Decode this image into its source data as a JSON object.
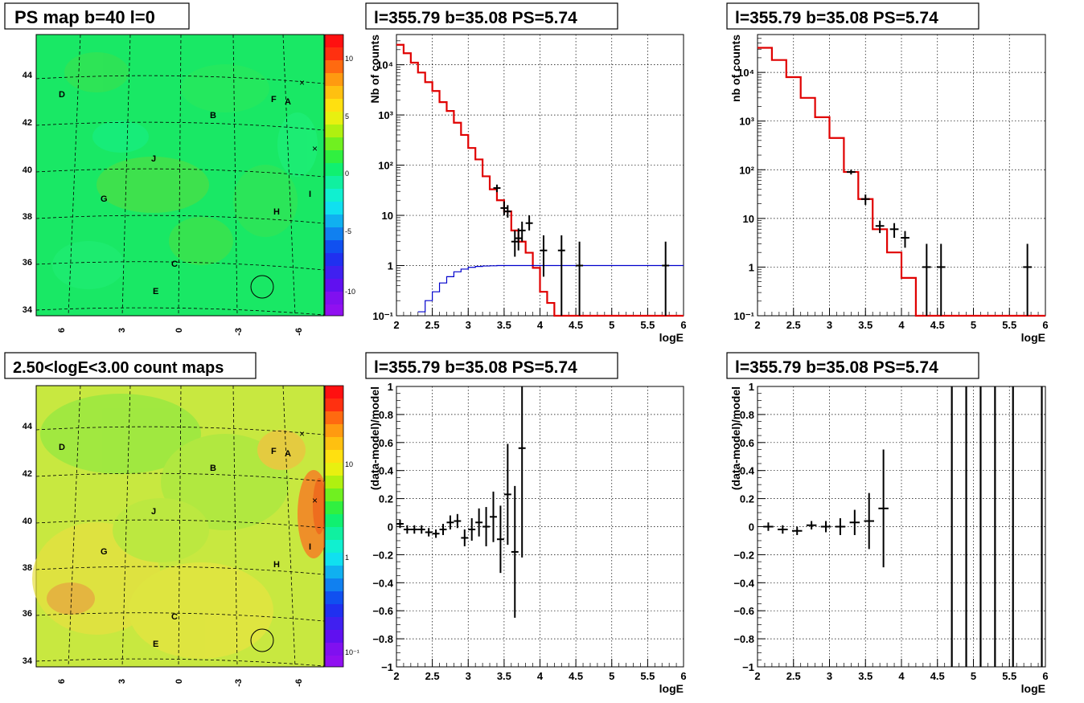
{
  "panels": {
    "map_top": {
      "title": "PS map b=40 l=0",
      "colorbar_ticks": [
        "10",
        "5",
        "0",
        "-5",
        "-10"
      ],
      "y_ticks": [
        "44",
        "42",
        "40",
        "38",
        "36",
        "34"
      ],
      "x_ticks": [
        "6",
        "3",
        "0",
        "-3",
        "-6"
      ],
      "labels": [
        "D",
        "F",
        "A",
        "B",
        "J",
        "G",
        "H",
        "I",
        "C",
        "E"
      ]
    },
    "map_bottom": {
      "title": "2.50<logE<3.00 count maps",
      "colorbar_ticks": [
        "10",
        "1",
        "10⁻¹"
      ],
      "y_ticks": [
        "44",
        "42",
        "40",
        "38",
        "36",
        "34"
      ],
      "x_ticks": [
        "6",
        "3",
        "0",
        "-3",
        "-6"
      ],
      "labels": [
        "D",
        "F",
        "A",
        "B",
        "J",
        "G",
        "H",
        "I",
        "C",
        "E"
      ]
    }
  },
  "chart_data": [
    {
      "type": "line",
      "panel": "spectrum-left",
      "title": "l=355.79 b=35.08 PS=5.74",
      "xlabel": "logE",
      "ylabel": "Nb of counts",
      "xlim": [
        2,
        6
      ],
      "ylim": [
        0.1,
        40000
      ],
      "yscale": "log",
      "x_ticks": [
        "2",
        "2.5",
        "3",
        "3.5",
        "4",
        "4.5",
        "5",
        "5.5",
        "6"
      ],
      "y_ticks": [
        "10⁻¹",
        "1",
        "10",
        "10²",
        "10³",
        "10⁴"
      ],
      "grid": true,
      "series": [
        {
          "style": "step",
          "color": "#e00000",
          "x": [
            2.0,
            2.1,
            2.2,
            2.3,
            2.4,
            2.5,
            2.6,
            2.7,
            2.8,
            2.9,
            3.0,
            3.1,
            3.2,
            3.3,
            3.4,
            3.5,
            3.6,
            3.7,
            3.8,
            3.9,
            4.0,
            4.1,
            4.2,
            6.0
          ],
          "values": [
            25000,
            17000,
            11000,
            7000,
            4500,
            3000,
            1800,
            1200,
            700,
            400,
            220,
            130,
            60,
            33,
            20,
            12,
            5,
            3,
            1.8,
            0.9,
            0.3,
            0.18,
            0.1,
            0.1
          ]
        },
        {
          "style": "step",
          "color": "#0000cc",
          "x": [
            2.3,
            2.4,
            2.5,
            2.6,
            2.7,
            2.8,
            2.9,
            3.0,
            3.1,
            3.2,
            3.3,
            3.4,
            6.0
          ],
          "values": [
            0.12,
            0.2,
            0.3,
            0.45,
            0.6,
            0.75,
            0.85,
            0.92,
            0.96,
            0.98,
            0.99,
            1.0,
            1.0
          ]
        },
        {
          "style": "errorbars",
          "color": "#000000",
          "x": [
            3.4,
            3.5,
            3.55,
            3.65,
            3.7,
            3.75,
            3.85,
            4.05,
            4.3,
            4.55,
            5.75
          ],
          "values": [
            35,
            14,
            12,
            3,
            3.5,
            5,
            7,
            2,
            2,
            1,
            1
          ],
          "xerr": [
            0.05,
            0.05,
            0.05,
            0.05,
            0.05,
            0.05,
            0.05,
            0.05,
            0.05,
            0.05,
            0.05
          ],
          "y_low": [
            29,
            10,
            9,
            1.5,
            2,
            3,
            5,
            0.6,
            0.1,
            0.1,
            0.1
          ],
          "y_high": [
            41,
            19,
            16,
            5,
            5.5,
            7.5,
            10,
            4,
            4,
            3,
            3
          ]
        }
      ]
    },
    {
      "type": "line",
      "panel": "spectrum-right",
      "title": "l=355.79 b=35.08 PS=5.74",
      "xlabel": "logE",
      "ylabel": "nb of counts",
      "xlim": [
        2,
        6
      ],
      "ylim": [
        0.1,
        60000
      ],
      "yscale": "log",
      "x_ticks": [
        "2",
        "2.5",
        "3",
        "3.5",
        "4",
        "4.5",
        "5",
        "5.5",
        "6"
      ],
      "y_ticks": [
        "10⁻¹",
        "1",
        "10",
        "10²",
        "10³",
        "10⁴"
      ],
      "grid": true,
      "series": [
        {
          "style": "step",
          "color": "#e00000",
          "x": [
            2.0,
            2.2,
            2.4,
            2.6,
            2.8,
            3.0,
            3.2,
            3.4,
            3.6,
            3.8,
            4.0,
            4.2,
            6.0
          ],
          "values": [
            32000,
            18000,
            8000,
            3000,
            1200,
            450,
            90,
            25,
            6,
            2,
            0.6,
            0.1,
            0.1
          ]
        },
        {
          "style": "errorbars",
          "color": "#000000",
          "x": [
            3.3,
            3.5,
            3.7,
            3.9,
            4.05,
            4.35,
            4.55,
            5.75
          ],
          "values": [
            90,
            25,
            7,
            6,
            4,
            1,
            1,
            1
          ],
          "xerr": [
            0.06,
            0.06,
            0.06,
            0.06,
            0.06,
            0.06,
            0.06,
            0.06
          ],
          "y_low": [
            80,
            19,
            5,
            4,
            2.5,
            0.1,
            0.1,
            0.1
          ],
          "y_high": [
            100,
            31,
            9,
            8,
            5.5,
            3,
            3,
            3
          ]
        }
      ]
    },
    {
      "type": "scatter",
      "panel": "residual-left",
      "title": "l=355.79 b=35.08 PS=5.74",
      "xlabel": "logE",
      "ylabel": "(data-model)/model",
      "xlim": [
        2,
        6
      ],
      "ylim": [
        -1,
        1
      ],
      "x_ticks": [
        "2",
        "2.5",
        "3",
        "3.5",
        "4",
        "4.5",
        "5",
        "5.5",
        "6"
      ],
      "y_ticks": [
        "−1",
        "−0.8",
        "−0.6",
        "−0.4",
        "−0.2",
        "0",
        "0.2",
        "0.4",
        "0.6",
        "0.8",
        "1"
      ],
      "grid": true,
      "series": [
        {
          "style": "errorbars",
          "color": "#000000",
          "x": [
            2.05,
            2.15,
            2.25,
            2.35,
            2.45,
            2.55,
            2.65,
            2.75,
            2.85,
            2.95,
            3.05,
            3.15,
            3.25,
            3.35,
            3.45,
            3.55,
            3.65,
            3.75
          ],
          "values": [
            0.02,
            -0.02,
            -0.02,
            -0.02,
            -0.04,
            -0.05,
            -0.02,
            0.03,
            0.04,
            -0.08,
            -0.02,
            0.03,
            0.0,
            0.07,
            -0.09,
            0.23,
            -0.18,
            0.56
          ],
          "xerr": [
            0.05,
            0.05,
            0.05,
            0.05,
            0.05,
            0.05,
            0.05,
            0.05,
            0.05,
            0.05,
            0.05,
            0.05,
            0.05,
            0.05,
            0.05,
            0.05,
            0.05,
            0.05
          ],
          "yerr": [
            0.03,
            0.03,
            0.03,
            0.03,
            0.03,
            0.03,
            0.04,
            0.05,
            0.05,
            0.06,
            0.08,
            0.1,
            0.14,
            0.18,
            0.24,
            0.36,
            0.47,
            0.78
          ]
        }
      ]
    },
    {
      "type": "scatter",
      "panel": "residual-right",
      "title": "l=355.79 b=35.08 PS=5.74",
      "xlabel": "logE",
      "ylabel": "(data-model)/model",
      "xlim": [
        2,
        6
      ],
      "ylim": [
        -1,
        1
      ],
      "x_ticks": [
        "2",
        "2.5",
        "3",
        "3.5",
        "4",
        "4.5",
        "5",
        "5.5",
        "6"
      ],
      "y_ticks": [
        "−1",
        "−0.8",
        "−0.6",
        "−0.4",
        "−0.2",
        "0",
        "0.2",
        "0.4",
        "0.6",
        "0.8",
        "1"
      ],
      "grid": true,
      "series": [
        {
          "style": "errorbars",
          "color": "#000000",
          "x": [
            2.15,
            2.35,
            2.55,
            2.75,
            2.95,
            3.15,
            3.35,
            3.55,
            3.75
          ],
          "values": [
            0.0,
            -0.02,
            -0.03,
            0.01,
            0.0,
            0.0,
            0.03,
            0.04,
            0.13
          ],
          "xerr": [
            0.07,
            0.07,
            0.07,
            0.07,
            0.07,
            0.07,
            0.07,
            0.07,
            0.07
          ],
          "yerr": [
            0.03,
            0.03,
            0.03,
            0.03,
            0.04,
            0.06,
            0.09,
            0.2,
            0.42
          ]
        },
        {
          "style": "vlines",
          "color": "#000000",
          "x": [
            4.7,
            4.9,
            5.1,
            5.3,
            5.55,
            5.95
          ]
        }
      ]
    }
  ]
}
